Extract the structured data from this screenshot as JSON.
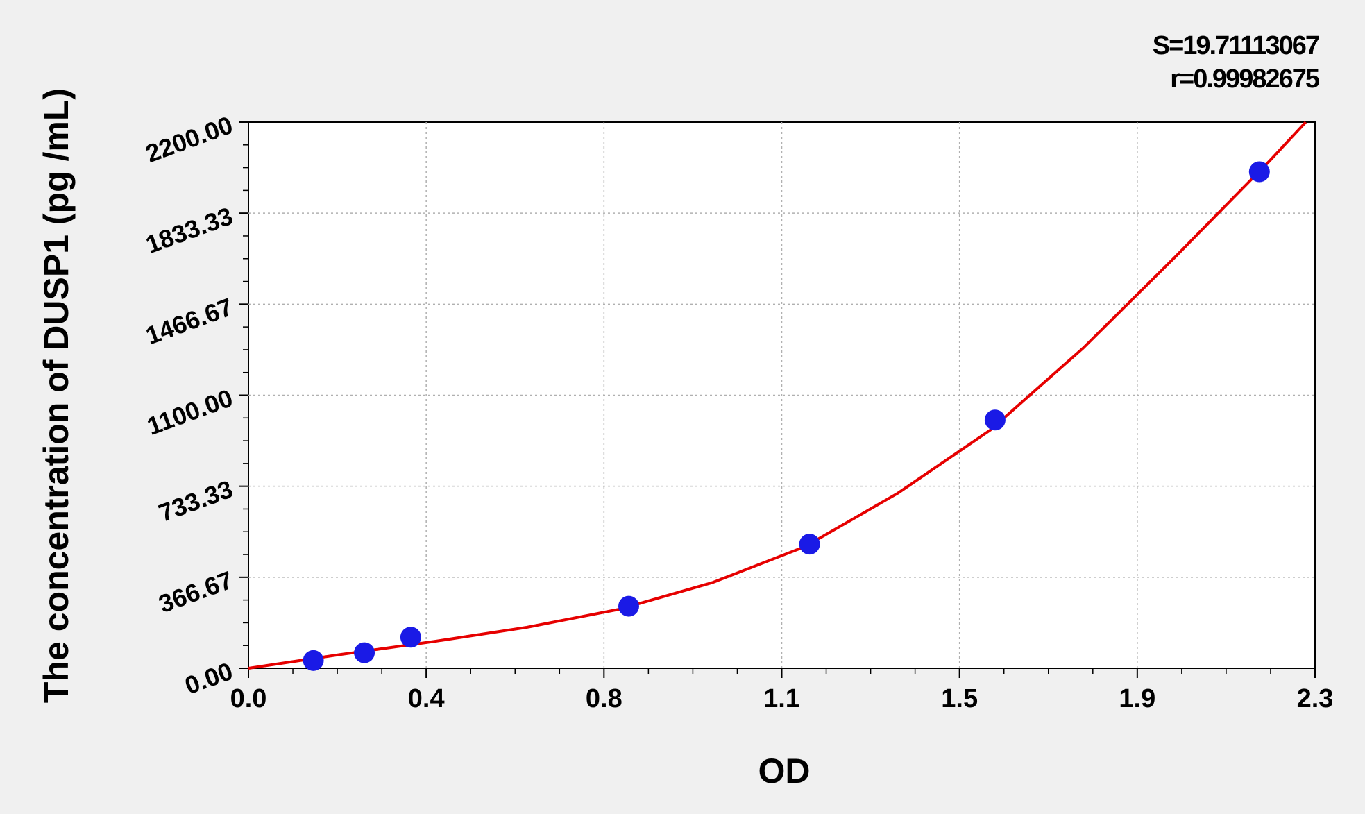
{
  "colors": {
    "background": "#f0f0f0",
    "plot_background": "#ffffff",
    "curve": "#e60000",
    "points": "#1a1ae6",
    "grid": "#b0b0b0"
  },
  "stats": {
    "s_text": "S=19.71113067",
    "r_text": "r=0.99982675"
  },
  "chart_data": {
    "type": "scatter",
    "xlabel": "OD",
    "ylabel": "The concentration of DUSP1 (pg /mL)",
    "xlim": [
      0.0,
      2.3
    ],
    "ylim": [
      0.0,
      2200.0
    ],
    "x_ticks": [
      "0.0",
      "0.4",
      "0.8",
      "1.1",
      "1.5",
      "1.9",
      "2.3"
    ],
    "y_ticks": [
      "0.00",
      "366.67",
      "733.33",
      "1100.00",
      "1466.67",
      "1833.33",
      "2200.00"
    ],
    "grid": true,
    "series": [
      {
        "kind": "points",
        "x": [
          0.14,
          0.25,
          0.35,
          0.82,
          1.21,
          1.61,
          2.18
        ],
        "y": [
          31.25,
          62.5,
          125,
          250,
          500,
          1000,
          2000
        ]
      },
      {
        "kind": "fitted-curve",
        "x": [
          0.0,
          0.2,
          0.4,
          0.6,
          0.8,
          1.0,
          1.2,
          1.4,
          1.6,
          1.8,
          2.0,
          2.2,
          2.28
        ],
        "y": [
          0,
          56,
          108,
          165,
          238,
          345,
          490,
          705,
          960,
          1290,
          1660,
          2040,
          2200
        ]
      }
    ]
  }
}
